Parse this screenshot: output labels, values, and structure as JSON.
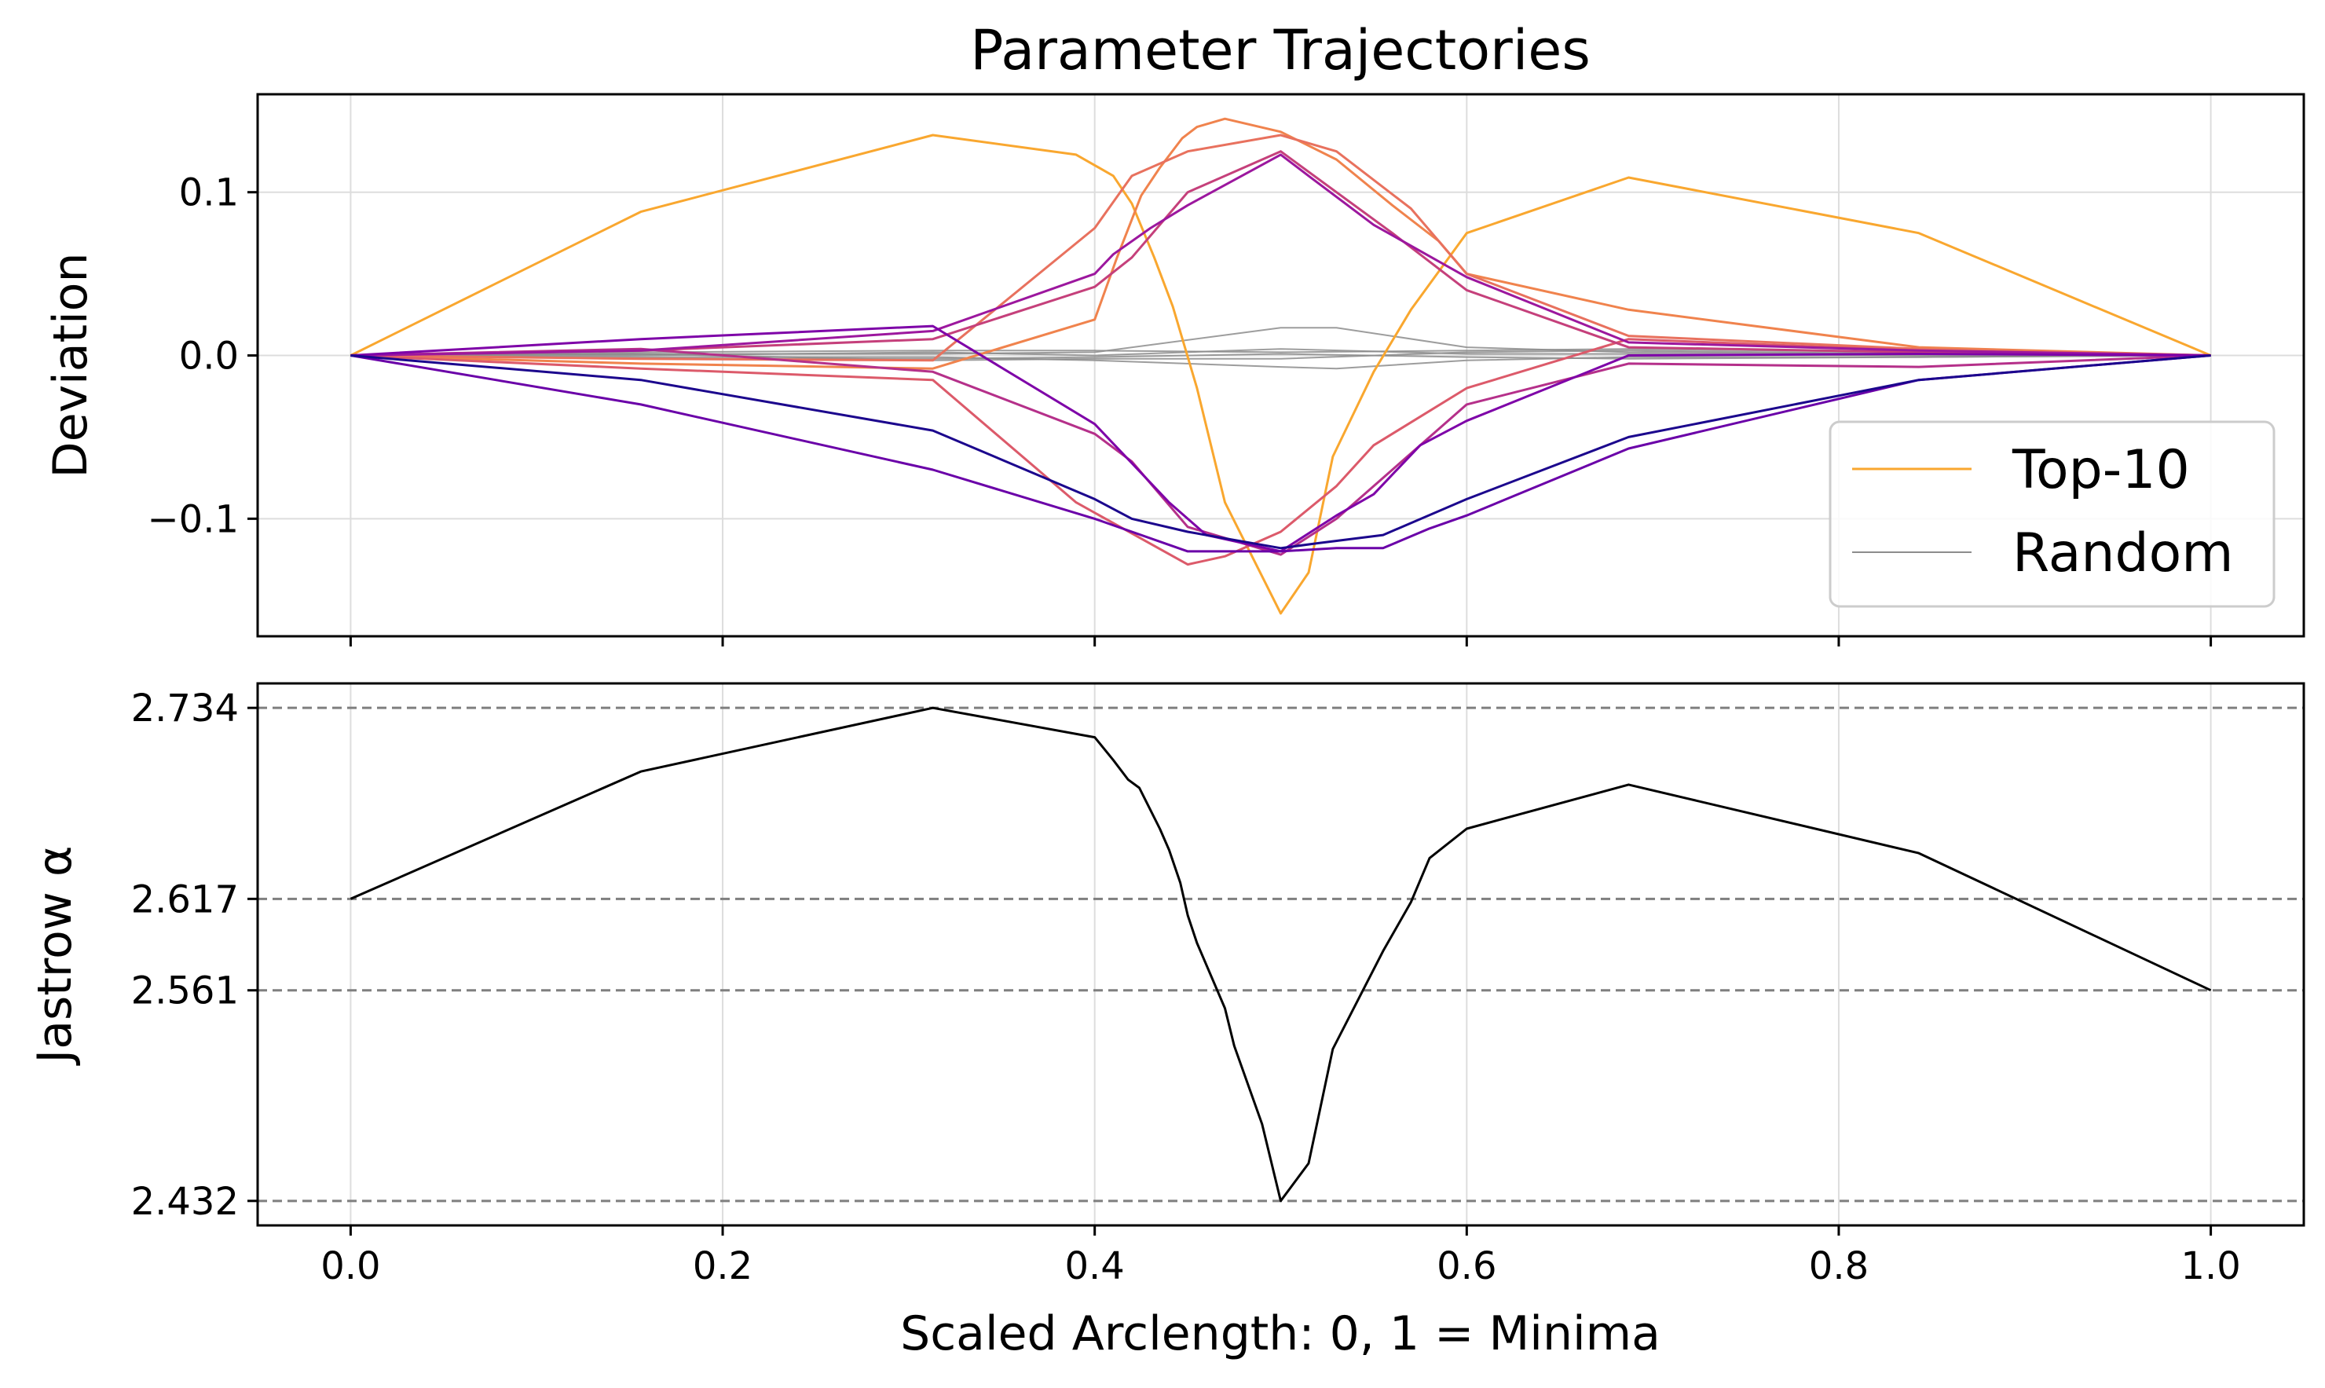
{
  "chart_data": [
    {
      "type": "line",
      "title": "Parameter Trajectories",
      "xlabel": "",
      "ylabel": "Deviation",
      "xlim": [
        -0.05,
        1.05
      ],
      "ylim": [
        -0.172,
        0.16
      ],
      "x_ticks": [
        0.0,
        0.2,
        0.4,
        0.6,
        0.8,
        1.0
      ],
      "y_ticks": [
        {
          "value": -0.1,
          "label": "−0.1"
        },
        {
          "value": 0.0,
          "label": "0.0"
        },
        {
          "value": 0.1,
          "label": "0.1"
        }
      ],
      "grid": true,
      "legend": {
        "placement": "lower right",
        "entries": [
          {
            "label": "Top-10",
            "color": "#f9a72f"
          },
          {
            "label": "Random",
            "color": "#8c8c8c"
          }
        ]
      },
      "series": [
        {
          "name": "Top-10",
          "color": "#f9a72f",
          "points": [
            [
              0,
              0
            ],
            [
              0.156,
              0.088
            ],
            [
              0.313,
              0.135
            ],
            [
              0.39,
              0.123
            ],
            [
              0.41,
              0.11
            ],
            [
              0.42,
              0.093
            ],
            [
              0.432,
              0.06
            ],
            [
              0.442,
              0.03
            ],
            [
              0.455,
              -0.02
            ],
            [
              0.47,
              -0.09
            ],
            [
              0.5,
              -0.158
            ],
            [
              0.515,
              -0.133
            ],
            [
              0.528,
              -0.062
            ],
            [
              0.55,
              -0.01
            ],
            [
              0.57,
              0.028
            ],
            [
              0.6,
              0.075
            ],
            [
              0.687,
              0.109
            ],
            [
              0.843,
              0.075
            ],
            [
              1,
              0
            ]
          ]
        },
        {
          "name": "Top-10",
          "color": "#f0834d",
          "points": [
            [
              0,
              0
            ],
            [
              0.156,
              -0.005
            ],
            [
              0.313,
              -0.008
            ],
            [
              0.4,
              0.022
            ],
            [
              0.412,
              0.06
            ],
            [
              0.425,
              0.098
            ],
            [
              0.435,
              0.115
            ],
            [
              0.447,
              0.133
            ],
            [
              0.455,
              0.14
            ],
            [
              0.47,
              0.145
            ],
            [
              0.5,
              0.137
            ],
            [
              0.53,
              0.12
            ],
            [
              0.56,
              0.092
            ],
            [
              0.585,
              0.07
            ],
            [
              0.6,
              0.05
            ],
            [
              0.687,
              0.028
            ],
            [
              0.843,
              0.005
            ],
            [
              1,
              0
            ]
          ]
        },
        {
          "name": "Top-10",
          "color": "#e8715e",
          "points": [
            [
              0,
              0
            ],
            [
              0.156,
              -0.002
            ],
            [
              0.313,
              -0.003
            ],
            [
              0.4,
              0.078
            ],
            [
              0.42,
              0.11
            ],
            [
              0.45,
              0.125
            ],
            [
              0.5,
              0.135
            ],
            [
              0.53,
              0.125
            ],
            [
              0.57,
              0.09
            ],
            [
              0.6,
              0.05
            ],
            [
              0.687,
              0.012
            ],
            [
              0.843,
              0.004
            ],
            [
              1,
              0
            ]
          ]
        },
        {
          "name": "Top-10",
          "color": "#dc5a6a",
          "points": [
            [
              0,
              0
            ],
            [
              0.156,
              -0.008
            ],
            [
              0.313,
              -0.015
            ],
            [
              0.39,
              -0.09
            ],
            [
              0.45,
              -0.128
            ],
            [
              0.47,
              -0.123
            ],
            [
              0.5,
              -0.108
            ],
            [
              0.53,
              -0.08
            ],
            [
              0.55,
              -0.055
            ],
            [
              0.6,
              -0.02
            ],
            [
              0.687,
              0.01
            ],
            [
              0.843,
              0.003
            ],
            [
              1,
              0
            ]
          ]
        },
        {
          "name": "Top-10",
          "color": "#c5407b",
          "points": [
            [
              0,
              0
            ],
            [
              0.156,
              0.003
            ],
            [
              0.313,
              0.01
            ],
            [
              0.4,
              0.042
            ],
            [
              0.42,
              0.06
            ],
            [
              0.45,
              0.1
            ],
            [
              0.5,
              0.125
            ],
            [
              0.53,
              0.1
            ],
            [
              0.56,
              0.075
            ],
            [
              0.6,
              0.04
            ],
            [
              0.687,
              0.005
            ],
            [
              0.843,
              0.002
            ],
            [
              1,
              0
            ]
          ]
        },
        {
          "name": "Top-10",
          "color": "#b5308a",
          "points": [
            [
              0,
              0
            ],
            [
              0.156,
              0.004
            ],
            [
              0.313,
              -0.01
            ],
            [
              0.4,
              -0.048
            ],
            [
              0.42,
              -0.065
            ],
            [
              0.45,
              -0.105
            ],
            [
              0.5,
              -0.122
            ],
            [
              0.53,
              -0.1
            ],
            [
              0.56,
              -0.07
            ],
            [
              0.6,
              -0.03
            ],
            [
              0.687,
              -0.005
            ],
            [
              0.843,
              -0.007
            ],
            [
              1,
              0
            ]
          ]
        },
        {
          "name": "Top-10",
          "color": "#9c179e",
          "points": [
            [
              0,
              0
            ],
            [
              0.156,
              0.003
            ],
            [
              0.313,
              0.015
            ],
            [
              0.4,
              0.05
            ],
            [
              0.41,
              0.062
            ],
            [
              0.43,
              0.078
            ],
            [
              0.45,
              0.092
            ],
            [
              0.5,
              0.123
            ],
            [
              0.515,
              0.11
            ],
            [
              0.55,
              0.08
            ],
            [
              0.6,
              0.048
            ],
            [
              0.687,
              0.008
            ],
            [
              0.843,
              0.003
            ],
            [
              1,
              0
            ]
          ]
        },
        {
          "name": "Top-10",
          "color": "#7e03a8",
          "points": [
            [
              0,
              0
            ],
            [
              0.156,
              0.01
            ],
            [
              0.313,
              0.018
            ],
            [
              0.4,
              -0.042
            ],
            [
              0.425,
              -0.072
            ],
            [
              0.44,
              -0.09
            ],
            [
              0.46,
              -0.11
            ],
            [
              0.5,
              -0.12
            ],
            [
              0.53,
              -0.098
            ],
            [
              0.55,
              -0.085
            ],
            [
              0.575,
              -0.055
            ],
            [
              0.6,
              -0.04
            ],
            [
              0.687,
              0.0
            ],
            [
              0.843,
              0.001
            ],
            [
              1,
              0
            ]
          ]
        },
        {
          "name": "Top-10",
          "color": "#6a00a8",
          "points": [
            [
              0,
              0
            ],
            [
              0.156,
              -0.03
            ],
            [
              0.313,
              -0.07
            ],
            [
              0.4,
              -0.1
            ],
            [
              0.45,
              -0.12
            ],
            [
              0.5,
              -0.12
            ],
            [
              0.53,
              -0.118
            ],
            [
              0.555,
              -0.118
            ],
            [
              0.58,
              -0.106
            ],
            [
              0.6,
              -0.098
            ],
            [
              0.687,
              -0.057
            ],
            [
              0.843,
              -0.015
            ],
            [
              1,
              0
            ]
          ]
        },
        {
          "name": "Top-10",
          "color": "#1b068d",
          "points": [
            [
              0,
              0
            ],
            [
              0.156,
              -0.015
            ],
            [
              0.313,
              -0.046
            ],
            [
              0.4,
              -0.088
            ],
            [
              0.42,
              -0.1
            ],
            [
              0.45,
              -0.108
            ],
            [
              0.5,
              -0.118
            ],
            [
              0.52,
              -0.115
            ],
            [
              0.555,
              -0.11
            ],
            [
              0.6,
              -0.088
            ],
            [
              0.687,
              -0.05
            ],
            [
              0.843,
              -0.015
            ],
            [
              1,
              0
            ]
          ]
        },
        {
          "name": "Random",
          "color": "#8c8c8c",
          "points": [
            [
              0,
              0
            ],
            [
              0.156,
              0.001
            ],
            [
              0.313,
              0.001
            ],
            [
              0.4,
              0.002
            ],
            [
              0.5,
              0.017
            ],
            [
              0.53,
              0.017
            ],
            [
              0.6,
              0.005
            ],
            [
              0.687,
              0.002
            ],
            [
              0.843,
              0.001
            ],
            [
              1,
              0
            ]
          ]
        },
        {
          "name": "Random",
          "color": "#8c8c8c",
          "points": [
            [
              0,
              0
            ],
            [
              0.156,
              -0.001
            ],
            [
              0.313,
              -0.001
            ],
            [
              0.4,
              -0.003
            ],
            [
              0.5,
              -0.007
            ],
            [
              0.53,
              -0.008
            ],
            [
              0.6,
              -0.003
            ],
            [
              0.687,
              -0.001
            ],
            [
              0.843,
              -0.001
            ],
            [
              1,
              0
            ]
          ]
        },
        {
          "name": "Random",
          "color": "#8c8c8c",
          "points": [
            [
              0,
              0
            ],
            [
              0.156,
              0.002
            ],
            [
              0.313,
              0.003
            ],
            [
              0.4,
              0.003
            ],
            [
              0.5,
              0.002
            ],
            [
              0.6,
              0.003
            ],
            [
              0.687,
              0.004
            ],
            [
              0.843,
              0.002
            ],
            [
              1,
              0
            ]
          ]
        },
        {
          "name": "Random",
          "color": "#8c8c8c",
          "points": [
            [
              0,
              0
            ],
            [
              0.156,
              -0.002
            ],
            [
              0.313,
              -0.002
            ],
            [
              0.4,
              -0.001
            ],
            [
              0.5,
              0.001
            ],
            [
              0.6,
              -0.001
            ],
            [
              0.687,
              -0.002
            ],
            [
              0.843,
              -0.001
            ],
            [
              1,
              0
            ]
          ]
        },
        {
          "name": "Random",
          "color": "#8c8c8c",
          "points": [
            [
              0,
              0
            ],
            [
              0.156,
              0.0
            ],
            [
              0.313,
              0.002
            ],
            [
              0.4,
              0.0
            ],
            [
              0.5,
              0.004
            ],
            [
              0.6,
              0.001
            ],
            [
              0.687,
              0.001
            ],
            [
              0.843,
              0.0
            ],
            [
              1,
              0
            ]
          ]
        },
        {
          "name": "Random",
          "color": "#8c8c8c",
          "points": [
            [
              0,
              0
            ],
            [
              0.156,
              0.001
            ],
            [
              0.313,
              -0.003
            ],
            [
              0.4,
              -0.002
            ],
            [
              0.5,
              -0.002
            ],
            [
              0.6,
              0.002
            ],
            [
              0.687,
              0.003
            ],
            [
              0.843,
              0.001
            ],
            [
              1,
              0
            ]
          ]
        }
      ]
    },
    {
      "type": "line",
      "title": "",
      "xlabel": "Scaled Arclength: 0, 1 = Minima",
      "ylabel": "Jastrow α",
      "xlim": [
        -0.05,
        1.05
      ],
      "ylim": [
        2.417,
        2.749
      ],
      "x_ticks": [
        0.0,
        0.2,
        0.4,
        0.6,
        0.8,
        1.0
      ],
      "y_ticks": [
        {
          "value": 2.432,
          "label": "2.432"
        },
        {
          "value": 2.561,
          "label": "2.561"
        },
        {
          "value": 2.617,
          "label": "2.617"
        },
        {
          "value": 2.734,
          "label": "2.734"
        }
      ],
      "hlines": [
        2.432,
        2.561,
        2.617,
        2.734
      ],
      "grid": true,
      "series": [
        {
          "name": "Jastrow alpha",
          "color": "#000000",
          "points": [
            [
              0,
              2.617
            ],
            [
              0.156,
              2.695
            ],
            [
              0.313,
              2.734
            ],
            [
              0.4,
              2.716
            ],
            [
              0.41,
              2.702
            ],
            [
              0.418,
              2.69
            ],
            [
              0.424,
              2.685
            ],
            [
              0.435,
              2.66
            ],
            [
              0.44,
              2.647
            ],
            [
              0.446,
              2.627
            ],
            [
              0.45,
              2.607
            ],
            [
              0.455,
              2.59
            ],
            [
              0.47,
              2.55
            ],
            [
              0.475,
              2.527
            ],
            [
              0.49,
              2.479
            ],
            [
              0.5,
              2.432
            ],
            [
              0.515,
              2.455
            ],
            [
              0.528,
              2.525
            ],
            [
              0.555,
              2.585
            ],
            [
              0.57,
              2.615
            ],
            [
              0.58,
              2.642
            ],
            [
              0.6,
              2.66
            ],
            [
              0.687,
              2.687
            ],
            [
              0.843,
              2.645
            ],
            [
              1,
              2.561
            ]
          ]
        }
      ]
    }
  ]
}
